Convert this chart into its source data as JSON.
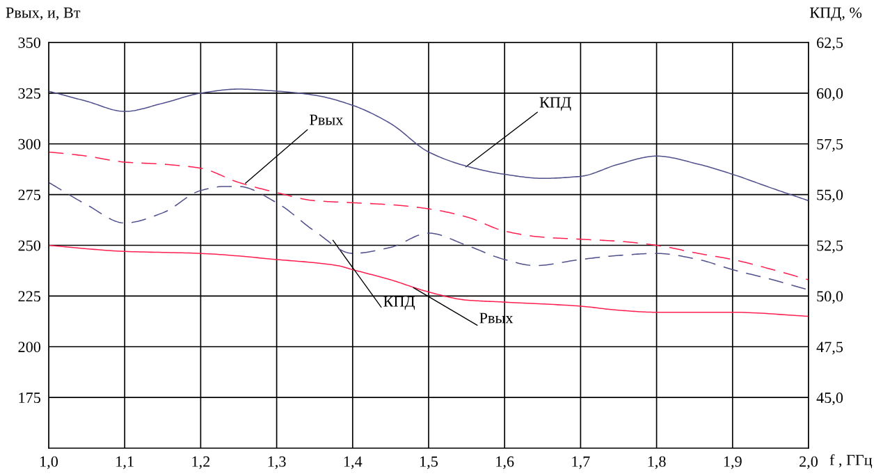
{
  "chart_data": {
    "type": "line",
    "xlabel": "f , ГГц",
    "ylabel": "Рвых, и, Вт",
    "y2label": "КПД, %",
    "xlim": [
      1.0,
      2.0
    ],
    "xticks": [
      {
        "value": 1.0,
        "label": "1,0"
      },
      {
        "value": 1.1,
        "label": "1,1"
      },
      {
        "value": 1.2,
        "label": "1,2"
      },
      {
        "value": 1.3,
        "label": "1,3"
      },
      {
        "value": 1.4,
        "label": "1,4"
      },
      {
        "value": 1.5,
        "label": "1,5"
      },
      {
        "value": 1.6,
        "label": "1,6"
      },
      {
        "value": 1.7,
        "label": "1,7"
      },
      {
        "value": 1.8,
        "label": "1,8"
      },
      {
        "value": 1.9,
        "label": "1,9"
      },
      {
        "value": 2.0,
        "label": "2,0"
      }
    ],
    "ylim": [
      150,
      350
    ],
    "yticks": [
      175,
      200,
      225,
      250,
      275,
      300,
      325,
      350
    ],
    "y2lim": [
      42.5,
      62.5
    ],
    "y2ticks": [
      {
        "value": 45,
        "label": "45,0"
      },
      {
        "value": 47.5,
        "label": "47,5"
      },
      {
        "value": 50,
        "label": "50,0"
      },
      {
        "value": 52.5,
        "label": "52,5"
      },
      {
        "value": 55,
        "label": "55,0"
      },
      {
        "value": 57.5,
        "label": "57,5"
      },
      {
        "value": 60,
        "label": "60,0"
      },
      {
        "value": 62.5,
        "label": "62,5"
      }
    ],
    "grid": true,
    "legend": false,
    "marker": "none",
    "series": [
      {
        "color": "#50508c",
        "axis": "y2",
        "line_style": "solid",
        "x": [
          1.0,
          1.05,
          1.1,
          1.15,
          1.2,
          1.25,
          1.3,
          1.35,
          1.4,
          1.45,
          1.5,
          1.55,
          1.6,
          1.65,
          1.7,
          1.75,
          1.8,
          1.855,
          1.9,
          1.953,
          2.0
        ],
        "values": [
          60.1,
          59.6,
          59.1,
          59.5,
          60.0,
          60.2,
          60.1,
          59.9,
          59.4,
          58.5,
          57.1,
          56.4,
          56.0,
          55.8,
          55.9,
          56.5,
          56.9,
          56.5,
          56.0,
          55.3,
          54.7
        ]
      },
      {
        "color": "#50508c",
        "axis": "y2",
        "line_style": "dashed",
        "x": [
          1.0,
          1.05,
          1.1,
          1.15,
          1.2,
          1.23,
          1.25,
          1.3,
          1.35,
          1.4,
          1.45,
          1.5,
          1.55,
          1.6,
          1.64,
          1.7,
          1.75,
          1.8,
          1.855,
          1.9,
          1.953,
          2.0
        ],
        "values": [
          55.6,
          54.5,
          53.6,
          54.1,
          55.2,
          55.4,
          55.4,
          54.6,
          53.2,
          52.1,
          52.4,
          53.1,
          52.5,
          51.8,
          51.5,
          51.8,
          52.0,
          52.1,
          51.8,
          51.3,
          50.8,
          50.3
        ]
      },
      {
        "color": "#ff2050",
        "axis": "y",
        "line_style": "dashed",
        "x": [
          1.0,
          1.05,
          1.1,
          1.15,
          1.2,
          1.25,
          1.3,
          1.35,
          1.4,
          1.45,
          1.5,
          1.55,
          1.6,
          1.65,
          1.7,
          1.75,
          1.8,
          1.855,
          1.9,
          1.953,
          2.0
        ],
        "values": [
          296,
          294,
          291,
          290,
          288,
          281,
          276,
          272,
          271,
          270,
          268,
          264,
          257,
          254,
          253,
          252,
          250,
          246,
          243,
          238,
          233
        ]
      },
      {
        "color": "#ff2050",
        "axis": "y",
        "line_style": "solid",
        "x": [
          1.0,
          1.1,
          1.2,
          1.3,
          1.38,
          1.4,
          1.45,
          1.5,
          1.55,
          1.6,
          1.7,
          1.75,
          1.8,
          1.9,
          2.0
        ],
        "values": [
          250,
          247,
          246,
          243,
          240,
          238,
          233,
          227,
          223,
          222,
          220,
          218,
          217,
          217,
          215
        ]
      }
    ],
    "annotations": [
      {
        "text": "КПД",
        "x": 1.549,
        "y": 288.7
      },
      {
        "text": "Рвых",
        "x": 1.259,
        "y": 280.6
      },
      {
        "text": "КПД",
        "x": 1.374,
        "y": 252.5
      },
      {
        "text": "Рвых",
        "x": 1.48,
        "y": 229.1
      }
    ]
  }
}
